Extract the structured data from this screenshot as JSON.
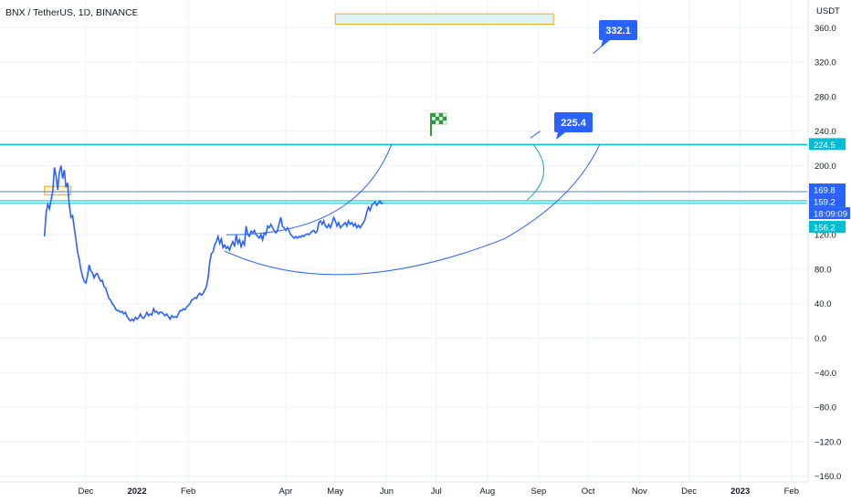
{
  "header": {
    "symbol": "BNX / TetherUS, 1D, BINANCE"
  },
  "axis": {
    "currency": "USDT"
  },
  "colors": {
    "price_line": "#2962ff",
    "accent_line": "#00bcd4",
    "callout": "#2962ff",
    "zone_fill": "#dff5f3",
    "zone_border": "#f5a623",
    "zone_fill_left": "#fbf6d0",
    "green_curve": "#26a69a",
    "tag_dark": "#2962ff",
    "tag_mid": "#1e2c64",
    "tag_cyan": "#00bcd4"
  },
  "icons": {
    "flag": "checkered-flag-icon"
  },
  "chart_data": {
    "type": "line",
    "yaxis": {
      "ylim": [
        -160,
        380
      ],
      "ticks": [
        360,
        320,
        280,
        240,
        200,
        160,
        120,
        80,
        40,
        0,
        -40,
        -80,
        -120,
        -160
      ],
      "tick_labels": [
        "360.0",
        "320.0",
        "280.0",
        "240.0",
        "200.0",
        "160.0",
        "120.0",
        "80.0",
        "40.0",
        "0.0",
        "−40.0",
        "−80.0",
        "−120.0",
        "−160.0"
      ]
    },
    "xaxis": {
      "labels": [
        "Dec",
        "2022",
        "Feb",
        "Apr",
        "May",
        "Jun",
        "Jul",
        "Aug",
        "Sep",
        "Oct",
        "Nov",
        "Dec",
        "2023",
        "Feb"
      ],
      "label_days": [
        -5,
        26,
        57,
        116,
        146,
        177,
        207,
        238,
        269,
        299,
        330,
        360,
        391,
        422
      ]
    },
    "series": [
      {
        "points": [
          [
            -30,
            118
          ],
          [
            -29,
            145
          ],
          [
            -28,
            155
          ],
          [
            -27,
            150
          ],
          [
            -25,
            170
          ],
          [
            -24,
            198
          ],
          [
            -23,
            188
          ],
          [
            -22,
            172
          ],
          [
            -21,
            192
          ],
          [
            -20,
            200
          ],
          [
            -19,
            185
          ],
          [
            -18,
            195
          ],
          [
            -17,
            175
          ],
          [
            -16,
            180
          ],
          [
            -15,
            155
          ],
          [
            -14,
            140
          ],
          [
            -13,
            142
          ],
          [
            -12,
            128
          ],
          [
            -11,
            115
          ],
          [
            -10,
            100
          ],
          [
            -9,
            92
          ],
          [
            -8,
            80
          ],
          [
            -7,
            72
          ],
          [
            -6,
            66
          ],
          [
            -5,
            64
          ],
          [
            -4,
            72
          ],
          [
            -3,
            85
          ],
          [
            -2,
            78
          ],
          [
            -1,
            76
          ],
          [
            0,
            70
          ],
          [
            1,
            74
          ],
          [
            2,
            75
          ],
          [
            3,
            70
          ],
          [
            4,
            66
          ],
          [
            5,
            67
          ],
          [
            6,
            60
          ],
          [
            7,
            58
          ],
          [
            8,
            52
          ],
          [
            9,
            46
          ],
          [
            10,
            44
          ],
          [
            11,
            40
          ],
          [
            12,
            38
          ],
          [
            13,
            34
          ],
          [
            14,
            32
          ],
          [
            15,
            32
          ],
          [
            16,
            30
          ],
          [
            17,
            31
          ],
          [
            18,
            28
          ],
          [
            19,
            30
          ],
          [
            20,
            25
          ],
          [
            21,
            22
          ],
          [
            22,
            20
          ],
          [
            23,
            22
          ],
          [
            24,
            20
          ],
          [
            25,
            24
          ],
          [
            26,
            22
          ],
          [
            27,
            24
          ],
          [
            28,
            28
          ],
          [
            29,
            24
          ],
          [
            30,
            23
          ],
          [
            31,
            26
          ],
          [
            32,
            30
          ],
          [
            33,
            26
          ],
          [
            34,
            28
          ],
          [
            35,
            27
          ],
          [
            36,
            34
          ],
          [
            37,
            30
          ],
          [
            38,
            31
          ],
          [
            39,
            28
          ],
          [
            40,
            30
          ],
          [
            41,
            30
          ],
          [
            42,
            28
          ],
          [
            43,
            26
          ],
          [
            44,
            28
          ],
          [
            45,
            25
          ],
          [
            46,
            22
          ],
          [
            47,
            26
          ],
          [
            48,
            24
          ],
          [
            49,
            25
          ],
          [
            50,
            24
          ],
          [
            51,
            28
          ],
          [
            52,
            32
          ],
          [
            53,
            32
          ],
          [
            54,
            34
          ],
          [
            55,
            33
          ],
          [
            56,
            36
          ],
          [
            57,
            38
          ],
          [
            58,
            40
          ],
          [
            59,
            44
          ],
          [
            60,
            45
          ],
          [
            61,
            47
          ],
          [
            62,
            46
          ],
          [
            63,
            50
          ],
          [
            64,
            52
          ],
          [
            65,
            50
          ],
          [
            66,
            52
          ],
          [
            67,
            56
          ],
          [
            68,
            60
          ],
          [
            69,
            70
          ],
          [
            70,
            88
          ],
          [
            71,
            98
          ],
          [
            72,
            100
          ],
          [
            73,
            108
          ],
          [
            74,
            112
          ],
          [
            75,
            118
          ],
          [
            76,
            110
          ],
          [
            77,
            115
          ],
          [
            78,
            105
          ],
          [
            79,
            108
          ],
          [
            80,
            104
          ],
          [
            81,
            106
          ],
          [
            82,
            102
          ],
          [
            83,
            108
          ],
          [
            84,
            112
          ],
          [
            85,
            106
          ],
          [
            86,
            120
          ],
          [
            87,
            110
          ],
          [
            88,
            114
          ],
          [
            89,
            106
          ],
          [
            90,
            112
          ],
          [
            91,
            108
          ],
          [
            92,
            130
          ],
          [
            93,
            120
          ],
          [
            94,
            118
          ],
          [
            95,
            124
          ],
          [
            96,
            122
          ],
          [
            97,
            125
          ],
          [
            98,
            120
          ],
          [
            99,
            118
          ],
          [
            100,
            116
          ],
          [
            101,
            120
          ],
          [
            102,
            114
          ],
          [
            103,
            122
          ],
          [
            104,
            120
          ],
          [
            105,
            130
          ],
          [
            106,
            128
          ],
          [
            107,
            132
          ],
          [
            108,
            128
          ],
          [
            109,
            125
          ],
          [
            110,
            122
          ],
          [
            111,
            125
          ],
          [
            112,
            133
          ],
          [
            113,
            140
          ],
          [
            114,
            130
          ],
          [
            115,
            128
          ],
          [
            116,
            125
          ],
          [
            117,
            128
          ],
          [
            118,
            124
          ],
          [
            119,
            120
          ],
          [
            120,
            118
          ],
          [
            121,
            116
          ],
          [
            122,
            118
          ],
          [
            123,
            116
          ],
          [
            124,
            118
          ],
          [
            125,
            117
          ],
          [
            126,
            119
          ],
          [
            127,
            118
          ],
          [
            128,
            120
          ],
          [
            129,
            121
          ],
          [
            130,
            120
          ],
          [
            131,
            122
          ],
          [
            132,
            124
          ],
          [
            133,
            125
          ],
          [
            134,
            122
          ],
          [
            135,
            124
          ],
          [
            136,
            134
          ],
          [
            137,
            136
          ],
          [
            138,
            132
          ],
          [
            139,
            136
          ],
          [
            140,
            130
          ],
          [
            141,
            128
          ],
          [
            142,
            132
          ],
          [
            143,
            128
          ],
          [
            144,
            133
          ],
          [
            145,
            140
          ],
          [
            146,
            136
          ],
          [
            147,
            130
          ],
          [
            148,
            134
          ],
          [
            149,
            128
          ],
          [
            150,
            130
          ],
          [
            151,
            132
          ],
          [
            152,
            134
          ],
          [
            153,
            130
          ],
          [
            154,
            136
          ],
          [
            155,
            132
          ],
          [
            156,
            134
          ],
          [
            157,
            130
          ],
          [
            158,
            133
          ],
          [
            159,
            128
          ],
          [
            160,
            131
          ],
          [
            161,
            128
          ],
          [
            162,
            131
          ],
          [
            163,
            134
          ],
          [
            164,
            138
          ],
          [
            165,
            146
          ],
          [
            166,
            152
          ],
          [
            167,
            148
          ],
          [
            168,
            154
          ],
          [
            169,
            156
          ],
          [
            170,
            158
          ],
          [
            171,
            154
          ],
          [
            172,
            157
          ],
          [
            173,
            159
          ],
          [
            174,
            156
          ],
          [
            175,
            157
          ]
        ]
      }
    ],
    "horizontal_levels": [
      224.5,
      169.8,
      159.2,
      156.2
    ],
    "price_tags": [
      {
        "value": 224.5,
        "label": "224.5",
        "color": "#00bcd4"
      },
      {
        "value": 169.8,
        "label": "169.8",
        "color": "#2962ff"
      },
      {
        "value": 159.2,
        "label": "159.2",
        "color": "#2962ff"
      },
      {
        "value": 156.2,
        "label": "156.2",
        "color": "#00bcd4"
      }
    ],
    "countdown": "18:09:09",
    "callouts": [
      {
        "label": "332.1",
        "day": 217,
        "value": 347
      },
      {
        "label": "225.4",
        "day": 185,
        "value": 240
      }
    ],
    "zones": [
      {
        "day_start": 146,
        "day_end": 278,
        "value_low": 364,
        "value_high": 376
      },
      {
        "day_start": -30,
        "day_end": -14,
        "value_low": 166,
        "value_high": 176
      }
    ]
  }
}
